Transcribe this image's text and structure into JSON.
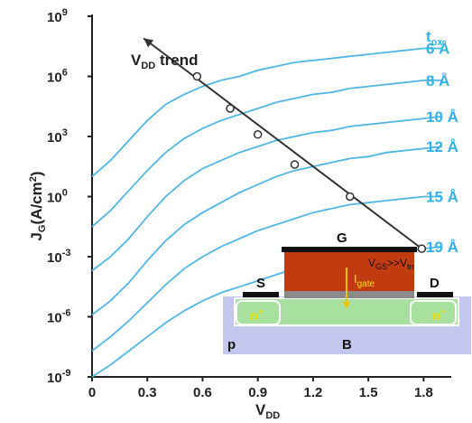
{
  "colors": {
    "curve": "#4fb6e6",
    "label": "#33b1e6",
    "trend": "#333333",
    "axis": "#222222",
    "substrate": "#c5c8ee",
    "well": "#a8e0a0",
    "gate": "#c23a10",
    "oxide": "#8a8a8a",
    "contact": "#111111",
    "ion": "#f0e000",
    "igate": "#f2c200"
  },
  "chart_data": {
    "type": "line",
    "xlabel": "V",
    "xlabel_sub": "DD",
    "ylabel": "J",
    "ylabel_sub": "G",
    "ylabel_unit": "(A/cm",
    "ylabel_unit_sup": "2",
    "ylabel_unit_end": ")",
    "xlim": [
      0,
      1.95
    ],
    "ylim": [
      -9,
      9
    ],
    "yscale": "log",
    "grid": false,
    "legend": "right",
    "legend_title": "t",
    "legend_title_sub": "ox",
    "xticks": [
      "0",
      "0.3",
      "0.6",
      "0.9",
      "1.2",
      "1.5",
      "1.8"
    ],
    "yticks": [
      {
        "base": "10",
        "exp": "9"
      },
      {
        "base": "10",
        "exp": "6"
      },
      {
        "base": "10",
        "exp": "3"
      },
      {
        "base": "10",
        "exp": "0"
      },
      {
        "base": "10",
        "exp": "-3"
      },
      {
        "base": "10",
        "exp": "-6"
      },
      {
        "base": "10",
        "exp": "-9"
      }
    ],
    "x": [
      0,
      0.1,
      0.2,
      0.3,
      0.4,
      0.5,
      0.6,
      0.7,
      0.8,
      0.9,
      1.0,
      1.1,
      1.2,
      1.3,
      1.4,
      1.5,
      1.6,
      1.7,
      1.8,
      1.9
    ],
    "series": [
      {
        "name": "6 Å",
        "values": [
          1.0,
          1.8,
          2.8,
          3.8,
          4.6,
          5.1,
          5.5,
          5.8,
          6.0,
          6.3,
          6.5,
          6.7,
          6.8,
          6.9,
          7.0,
          7.1,
          7.2,
          7.3,
          7.4,
          7.4
        ]
      },
      {
        "name": "8 Å",
        "values": [
          -1.5,
          -0.7,
          0.3,
          1.3,
          2.2,
          2.9,
          3.4,
          3.8,
          4.1,
          4.4,
          4.7,
          4.9,
          5.1,
          5.2,
          5.4,
          5.5,
          5.6,
          5.7,
          5.8,
          5.8
        ]
      },
      {
        "name": "10 Å",
        "values": [
          -3.7,
          -3.0,
          -2.1,
          -1.0,
          0.0,
          0.8,
          1.4,
          1.8,
          2.2,
          2.5,
          2.8,
          3.0,
          3.2,
          3.3,
          3.5,
          3.6,
          3.7,
          3.8,
          3.9,
          4.0
        ]
      },
      {
        "name": "12 Å",
        "values": [
          -5.9,
          -5.2,
          -4.3,
          -3.2,
          -2.2,
          -1.4,
          -0.8,
          -0.3,
          0.2,
          0.6,
          1.0,
          1.3,
          1.5,
          1.7,
          1.9,
          2.0,
          2.2,
          2.3,
          2.4,
          2.5
        ]
      },
      {
        "name": "15 Å",
        "values": [
          -7.7,
          -7.0,
          -6.2,
          -5.3,
          -4.4,
          -3.6,
          -3.0,
          -2.5,
          -2.1,
          -1.7,
          -1.4,
          -1.1,
          -0.8,
          -0.6,
          -0.4,
          -0.3,
          -0.2,
          -0.1,
          0.0,
          0.0
        ]
      },
      {
        "name": "19 Å",
        "values": [
          -9.0,
          -8.4,
          -7.7,
          -7.0,
          -6.3,
          -5.7,
          -5.2,
          -4.8,
          -4.5,
          -4.2,
          -3.9,
          -3.6,
          -3.4,
          -3.2,
          -3.0,
          -2.9,
          -2.8,
          -2.7,
          -2.6,
          -2.5
        ]
      }
    ],
    "trend": {
      "label": "V",
      "label_sub": "DD",
      "label_end": " trend",
      "points": [
        [
          1.79,
          -2.6
        ],
        [
          1.4,
          0.0
        ],
        [
          1.1,
          1.6
        ],
        [
          0.9,
          3.1
        ],
        [
          0.75,
          4.4
        ],
        [
          0.57,
          6.0
        ]
      ]
    },
    "inset": {
      "gate": "G",
      "source": "S",
      "drain": "D",
      "body": "B",
      "substrate": "p",
      "source_doping": "n",
      "source_doping_sup": "+",
      "drain_doping": "n",
      "drain_doping_sup": "+",
      "current": "I",
      "current_sub": "gate",
      "bias": "V",
      "bias_sub": "GS",
      "bias_rel": ">>V",
      "bias_rel_sub": "tn"
    }
  }
}
